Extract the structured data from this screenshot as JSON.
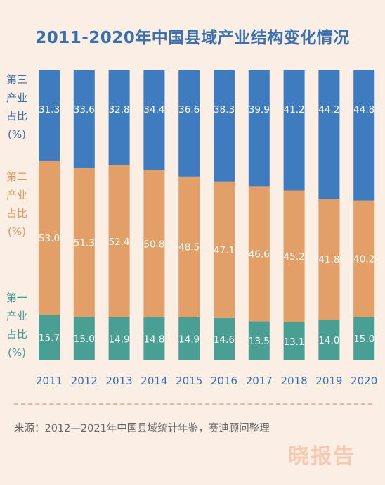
{
  "title": "2011-2020年中国县域产业结构变化情况",
  "side_labels": {
    "tertiary": [
      "第三",
      "产业",
      "占比",
      "(%)"
    ],
    "secondary": [
      "第二",
      "产业",
      "占比",
      "(%)"
    ],
    "primary": [
      "第一",
      "产业",
      "占比",
      "(%)"
    ]
  },
  "chart_data": {
    "type": "bar",
    "stacked": true,
    "normalized": true,
    "title": "2011-2020年中国县域产业结构变化情况",
    "categories": [
      "2011",
      "2012",
      "2013",
      "2014",
      "2015",
      "2016",
      "2017",
      "2018",
      "2019",
      "2020"
    ],
    "series": [
      {
        "name": "第一产业占比(%)",
        "color": "#4a9f94",
        "values": [
          15.7,
          15.0,
          14.9,
          14.8,
          14.9,
          14.6,
          13.5,
          13.1,
          14.0,
          15.0
        ]
      },
      {
        "name": "第二产业占比(%)",
        "color": "#e2a068",
        "values": [
          53.0,
          51.3,
          52.4,
          50.8,
          48.5,
          47.1,
          46.6,
          45.2,
          41.8,
          40.2
        ]
      },
      {
        "name": "第三产业占比(%)",
        "color": "#3e7cbf",
        "values": [
          31.3,
          33.6,
          32.8,
          34.4,
          36.6,
          38.3,
          39.9,
          41.2,
          44.2,
          44.8
        ]
      }
    ],
    "xlabel": "",
    "ylabel": "",
    "grid": false
  },
  "colors": {
    "tertiary_label": "#3a6fb0",
    "secondary_label": "#e09a5e",
    "primary_label": "#3f9c90",
    "year_label": "#3a6fb0",
    "background": "#fbeee4"
  },
  "source": "来源：2012—2021年中国县域统计年鉴，赛迪顾问整理",
  "watermark": "晓报告"
}
